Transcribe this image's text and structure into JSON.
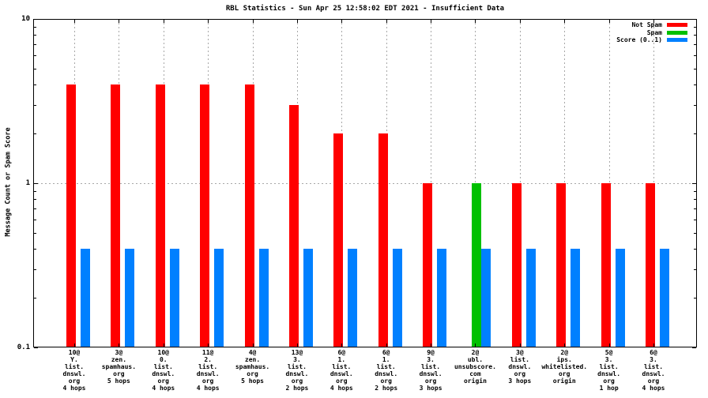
{
  "chart_data": {
    "type": "bar",
    "title": "RBL Statistics - Sun Apr 25 12:58:02 EDT 2021 - Insufficient Data",
    "ylabel": "Message Count or Spam Score",
    "xlabel": "",
    "yscale": "log",
    "ylim": [
      0.1,
      10
    ],
    "yticks": [
      10,
      1,
      0.1
    ],
    "ytick_labels": [
      "10",
      "1",
      "0.1"
    ],
    "grid": {
      "horizontal_at": 1,
      "vertical": "at-every-category",
      "style": "dashed-gray"
    },
    "legend_position": "top-right-inside",
    "categories": [
      [
        "10@",
        "Y.",
        "list.",
        "dnswl.",
        "org",
        "4 hops"
      ],
      [
        "3@",
        "zen.",
        "spamhaus.",
        "org",
        "5 hops"
      ],
      [
        "10@",
        "0.",
        "list.",
        "dnswl.",
        "org",
        "4 hops"
      ],
      [
        "11@",
        "2.",
        "list.",
        "dnswl.",
        "org",
        "4 hops"
      ],
      [
        "4@",
        "zen.",
        "spamhaus.",
        "org",
        "5 hops"
      ],
      [
        "13@",
        "3.",
        "list.",
        "dnswl.",
        "org",
        "2 hops"
      ],
      [
        "6@",
        "1.",
        "list.",
        "dnswl.",
        "org",
        "4 hops"
      ],
      [
        "6@",
        "1.",
        "list.",
        "dnswl.",
        "org",
        "2 hops"
      ],
      [
        "9@",
        "3.",
        "list.",
        "dnswl.",
        "org",
        "3 hops"
      ],
      [
        "2@",
        "ubl.",
        "unsubscore.",
        "com",
        "origin"
      ],
      [
        "3@",
        "list.",
        "dnswl.",
        "org",
        "3 hops"
      ],
      [
        "2@",
        "ips.",
        "whitelisted.",
        "org",
        "origin"
      ],
      [
        "5@",
        "3.",
        "list.",
        "dnswl.",
        "org",
        "1 hop"
      ],
      [
        "6@",
        "3.",
        "list.",
        "dnswl.",
        "org",
        "4 hops"
      ]
    ],
    "series": [
      {
        "name": "Not Spam",
        "color": "#ff0000",
        "values": [
          4,
          4,
          4,
          4,
          4,
          3,
          2,
          2,
          1,
          0,
          1,
          1,
          1,
          1
        ]
      },
      {
        "name": "Spam",
        "color": "#00c000",
        "values": [
          0,
          0,
          0,
          0,
          0,
          0,
          0,
          0,
          0,
          1,
          0,
          0,
          0,
          0
        ]
      },
      {
        "name": "Score (0..1)",
        "color": "#0080ff",
        "values": [
          0.4,
          0.4,
          0.4,
          0.4,
          0.4,
          0.4,
          0.4,
          0.4,
          0.4,
          0.4,
          0.4,
          0.4,
          0.4,
          0.4
        ]
      }
    ]
  },
  "colors": {
    "background": "#ffffff",
    "axis": "#000000",
    "grid": "#a8a8a8",
    "not_spam": "#ff0000",
    "spam": "#00c000",
    "score": "#0080ff"
  }
}
